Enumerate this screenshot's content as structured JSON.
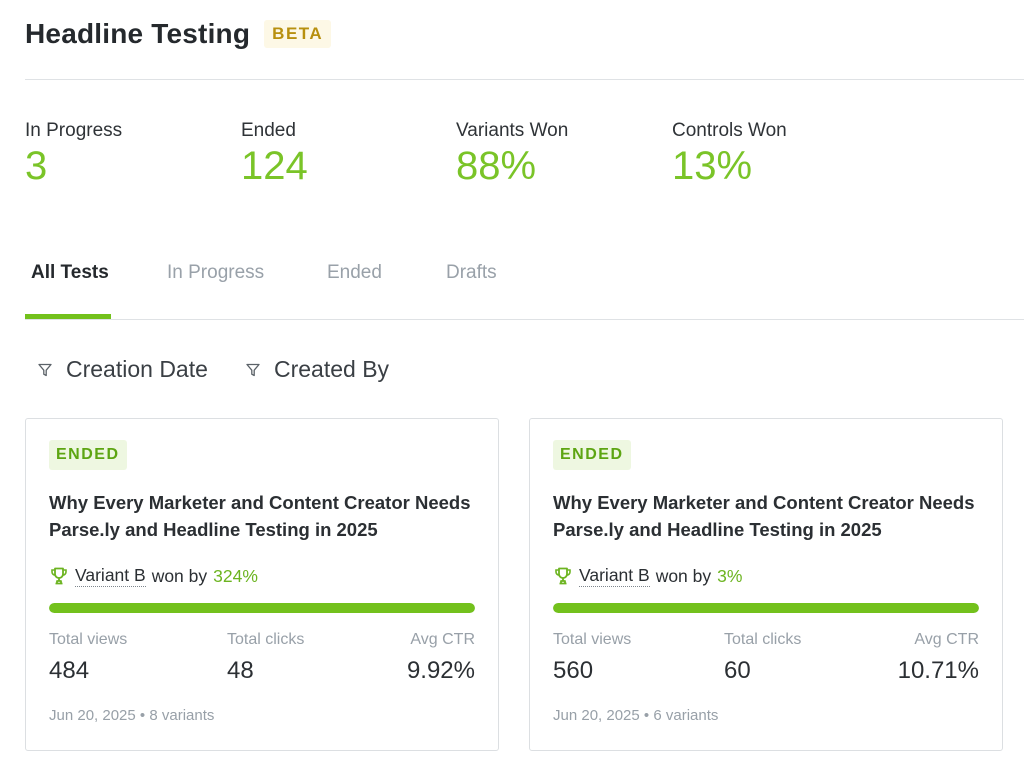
{
  "header": {
    "title": "Headline Testing",
    "badge": "BETA"
  },
  "stats": [
    {
      "label": "In Progress",
      "value": "3"
    },
    {
      "label": "Ended",
      "value": "124"
    },
    {
      "label": "Variants Won",
      "value": "88%"
    },
    {
      "label": "Controls Won",
      "value": "13%"
    }
  ],
  "tabs": [
    {
      "label": "All Tests",
      "active": true
    },
    {
      "label": "In Progress"
    },
    {
      "label": "Ended"
    },
    {
      "label": "Drafts"
    }
  ],
  "filters": [
    {
      "label": "Creation Date",
      "icon": "filter-icon"
    },
    {
      "label": "Created By",
      "icon": "filter-icon"
    }
  ],
  "cards": [
    {
      "status": "ENDED",
      "title": "Why Every Marketer and Content Creator Needs Parse.ly and Headline Testing in 2025",
      "winner_variant": "Variant B",
      "won_by_text": "won by",
      "won_by": "324%",
      "progress": 1.0,
      "metrics": [
        {
          "label": "Total views",
          "value": "484"
        },
        {
          "label": "Total clicks",
          "value": "48"
        },
        {
          "label": "Avg CTR",
          "value": "9.92%"
        }
      ],
      "date": "Jun 20, 2025",
      "separator": "•",
      "variants": "8 variants"
    },
    {
      "status": "ENDED",
      "title": "Why Every Marketer and Content Creator Needs Parse.ly and Headline Testing in 2025",
      "winner_variant": "Variant B",
      "won_by_text": "won by",
      "won_by": "3%",
      "progress": 1.0,
      "metrics": [
        {
          "label": "Total views",
          "value": "560"
        },
        {
          "label": "Total clicks",
          "value": "60"
        },
        {
          "label": "Avg CTR",
          "value": "10.71%"
        }
      ],
      "date": "Jun 20, 2025",
      "separator": "•",
      "variants": "6 variants"
    }
  ],
  "colors": {
    "accent": "#73c11c",
    "beta": "#b8900f",
    "muted": "#98a0a8"
  }
}
